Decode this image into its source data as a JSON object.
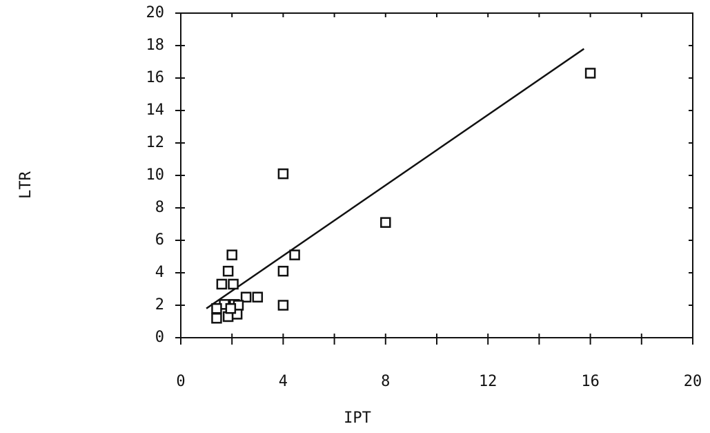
{
  "chart_data": {
    "type": "scatter",
    "x_label": "IPT",
    "y_label": "LTR",
    "x": [
      16,
      8,
      4,
      4,
      4,
      4.45,
      3.0,
      2.55,
      2.0,
      1.85,
      1.6,
      2.05,
      1.7,
      2.1,
      2.25,
      1.4,
      1.4,
      1.85,
      2.2,
      1.95
    ],
    "values": [
      16.3,
      7.1,
      10.1,
      4.1,
      2.0,
      5.1,
      2.5,
      2.5,
      5.1,
      4.1,
      3.3,
      3.3,
      2.05,
      2.05,
      2.0,
      1.8,
      1.2,
      1.3,
      1.45,
      1.8
    ],
    "color": "#111111",
    "trend_line": {
      "x": [
        1,
        15.75
      ],
      "y": [
        1.8,
        17.8
      ]
    },
    "xlim": [
      0,
      20
    ],
    "xticks": [
      0,
      4,
      8,
      12,
      16,
      20
    ],
    "x_minor_ticks": [
      2,
      6,
      10,
      14,
      18
    ],
    "ylim": [
      0,
      20
    ],
    "yticks": [
      0,
      2,
      4,
      6,
      8,
      10,
      12,
      14,
      16,
      18,
      20
    ]
  }
}
